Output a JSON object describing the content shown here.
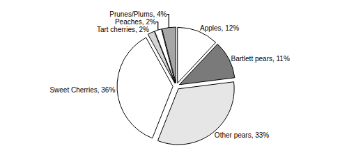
{
  "chart_data": {
    "type": "pie",
    "categories": [
      "Apples",
      "Bartlett pears",
      "Other pears",
      "Sweet Cherries",
      "Tart cherries",
      "Peaches",
      "Prunes/Plums"
    ],
    "values": [
      12,
      11,
      33,
      36,
      2,
      2,
      4
    ],
    "value_labels": [
      "Apples, 12%",
      "Bartlett pears, 11%",
      "Other pears, 33%",
      "Sweet Cherries, 36%",
      "Tart cherries, 2%",
      "Peaches, 2%",
      "Prunes/Plums, 4%"
    ],
    "colors": [
      "#ffffff",
      "#7a7a7a",
      "#e6e6e6",
      "#ffffff",
      "#d4d4d4",
      "#ffffff",
      "#a6a6a6"
    ],
    "data_labels": true
  }
}
